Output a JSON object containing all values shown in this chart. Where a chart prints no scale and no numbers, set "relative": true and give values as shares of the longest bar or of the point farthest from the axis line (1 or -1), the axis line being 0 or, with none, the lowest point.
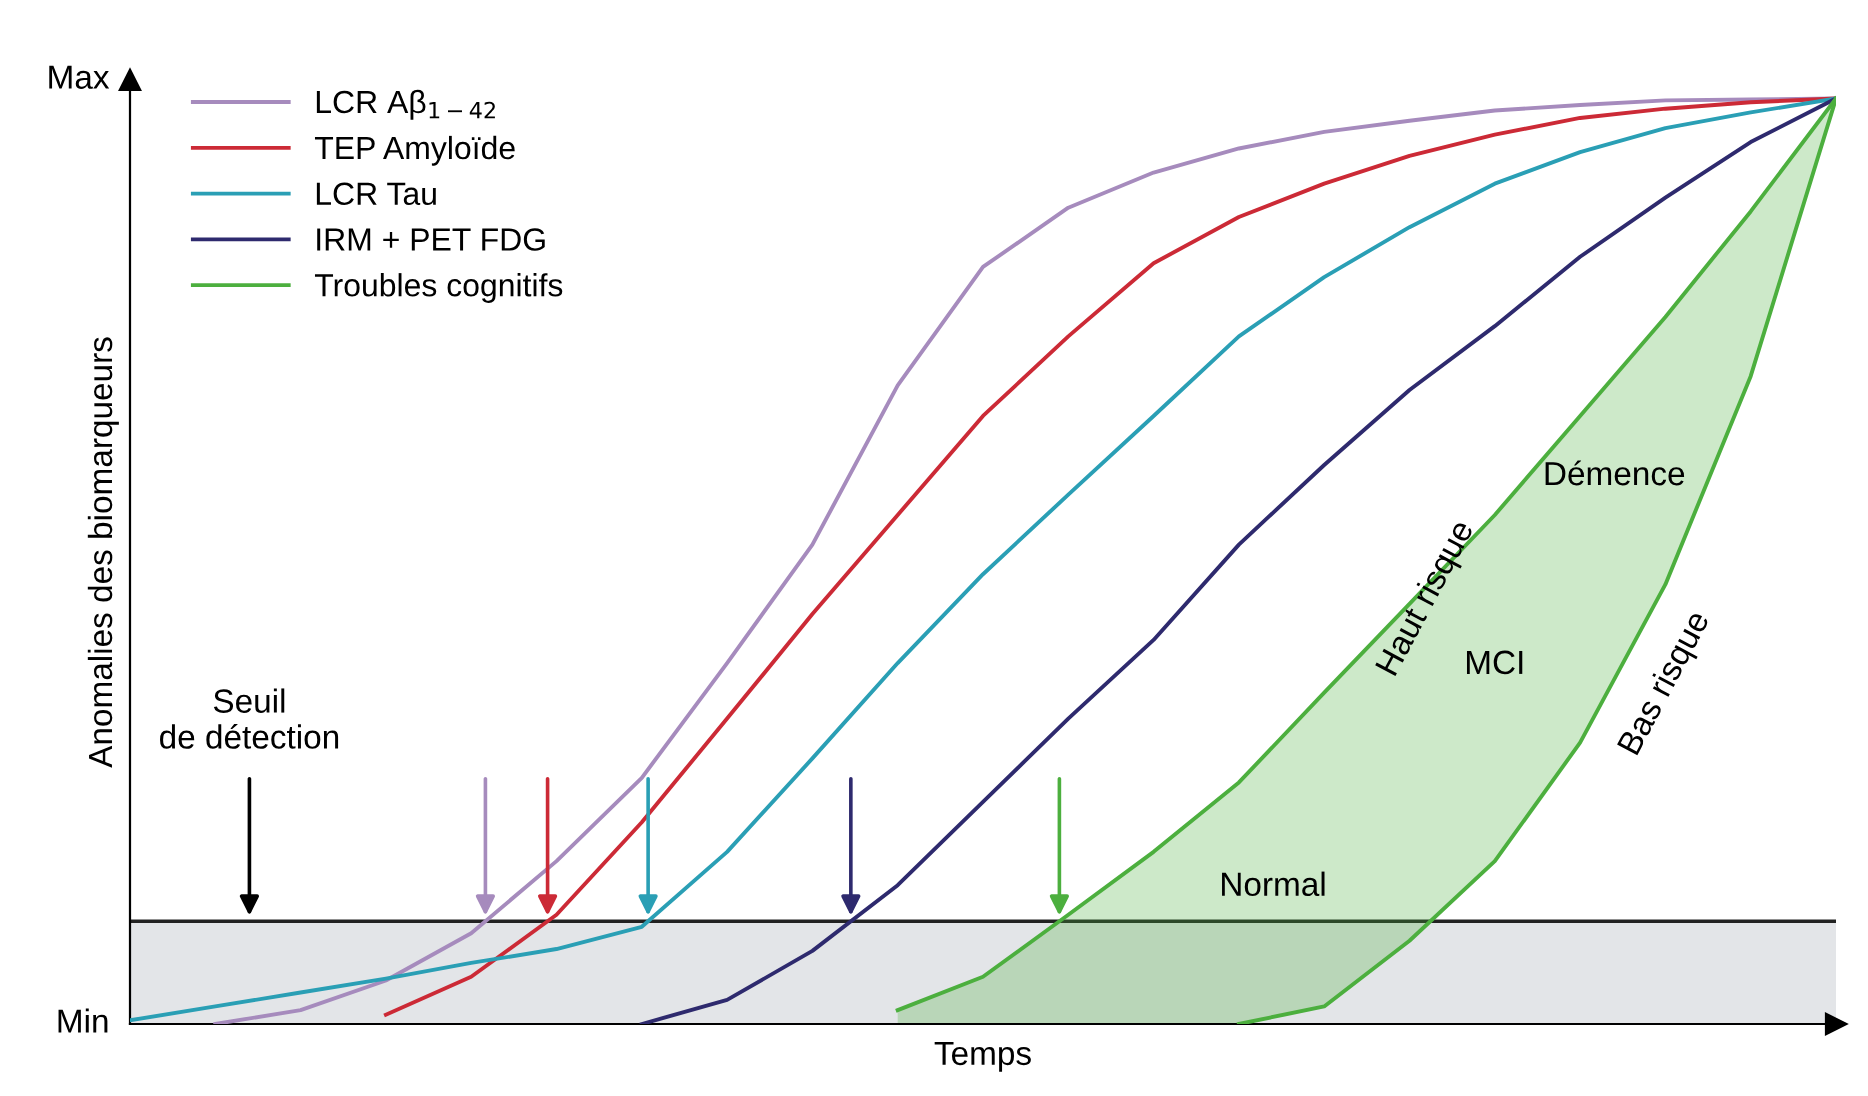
{
  "chart_data": {
    "type": "line",
    "xlabel": "Temps",
    "ylabel": "Anomalies des biomarqueurs",
    "categories": [
      null,
      null,
      null,
      null,
      null,
      null,
      null,
      null,
      null,
      null,
      null,
      null,
      null,
      null,
      null,
      null,
      null,
      null,
      null,
      null,
      null
    ],
    "series": [
      {
        "name": "LCR Aβ$_{1−42}$",
        "color": "#a68bbd",
        "values": [
          null,
          0.0,
          0.015,
          0.047,
          0.098,
          0.176,
          0.266,
          0.39,
          0.518,
          0.69,
          0.818,
          0.882,
          0.92,
          0.946,
          0.964,
          0.976,
          0.987,
          0.993,
          0.998,
          0.999,
          1.0
        ]
      },
      {
        "name": "TEP Amyloïde",
        "color": "#cc2a36",
        "values": [
          null,
          null,
          null,
          0.01,
          0.051,
          0.118,
          0.218,
          0.33,
          0.443,
          0.55,
          0.657,
          0.743,
          0.822,
          0.872,
          0.908,
          0.938,
          0.961,
          0.979,
          0.989,
          0.996,
          1.0
        ]
      },
      {
        "name": "LCR Tau",
        "color": "#2a9fb5",
        "values": [
          0.004,
          0.019,
          0.034,
          0.049,
          0.066,
          0.081,
          0.105,
          0.186,
          0.287,
          0.39,
          0.486,
          0.572,
          0.657,
          0.743,
          0.807,
          0.861,
          0.908,
          0.942,
          0.968,
          0.985,
          1.0
        ]
      },
      {
        "name": "IRM + PET FDG",
        "color": "#2e2a6e",
        "values": [
          null,
          null,
          null,
          null,
          null,
          null,
          0.0,
          0.026,
          0.079,
          0.15,
          0.24,
          0.33,
          0.415,
          0.518,
          0.604,
          0.685,
          0.754,
          0.829,
          0.893,
          0.953,
          1.0
        ]
      },
      {
        "name": "Troubles cognitifs",
        "color": "#4caf3e",
        "values": [
          null,
          null,
          null,
          null,
          null,
          null,
          null,
          null,
          null,
          0.015,
          0.051,
          0.118,
          0.186,
          0.261,
          0.358,
          0.454,
          0.55,
          0.657,
          0.764,
          0.878,
          1.0
        ],
        "upper": [
          null,
          null,
          null,
          null,
          null,
          null,
          null,
          null,
          null,
          0.015,
          0.051,
          0.118,
          0.186,
          0.261,
          0.358,
          0.454,
          0.55,
          0.657,
          0.764,
          0.878,
          1.0
        ],
        "lower": [
          null,
          null,
          null,
          null,
          null,
          null,
          null,
          null,
          null,
          0.0,
          0.0,
          0.0,
          0.0,
          0.0,
          0.019,
          0.09,
          0.176,
          0.304,
          0.475,
          0.7,
          1.0
        ]
      },
      {
        "color": "#4caf3e",
        "values": [
          null,
          null,
          null,
          null,
          null,
          null,
          null,
          null,
          null,
          null,
          null,
          null,
          null,
          0.0,
          0.019,
          0.09,
          0.176,
          0.304,
          0.475,
          0.7,
          1.0
        ]
      }
    ],
    "relative": true,
    "bands": [
      {
        "axis": "y",
        "from": 0,
        "to": 0.111,
        "color": "#e3e5e8"
      }
    ],
    "ref_lines": [
      {
        "axis": "y",
        "value": 0.111,
        "color": "#222222",
        "line_style": "solid"
      }
    ],
    "annotations": [
      "Seuil\nde détection",
      "Normal",
      "MCI",
      "Démence",
      "Haut risque",
      "Bas risque",
      "Min",
      "Max"
    ],
    "legend": "top left",
    "marker": "none",
    "line_style": "solid"
  }
}
